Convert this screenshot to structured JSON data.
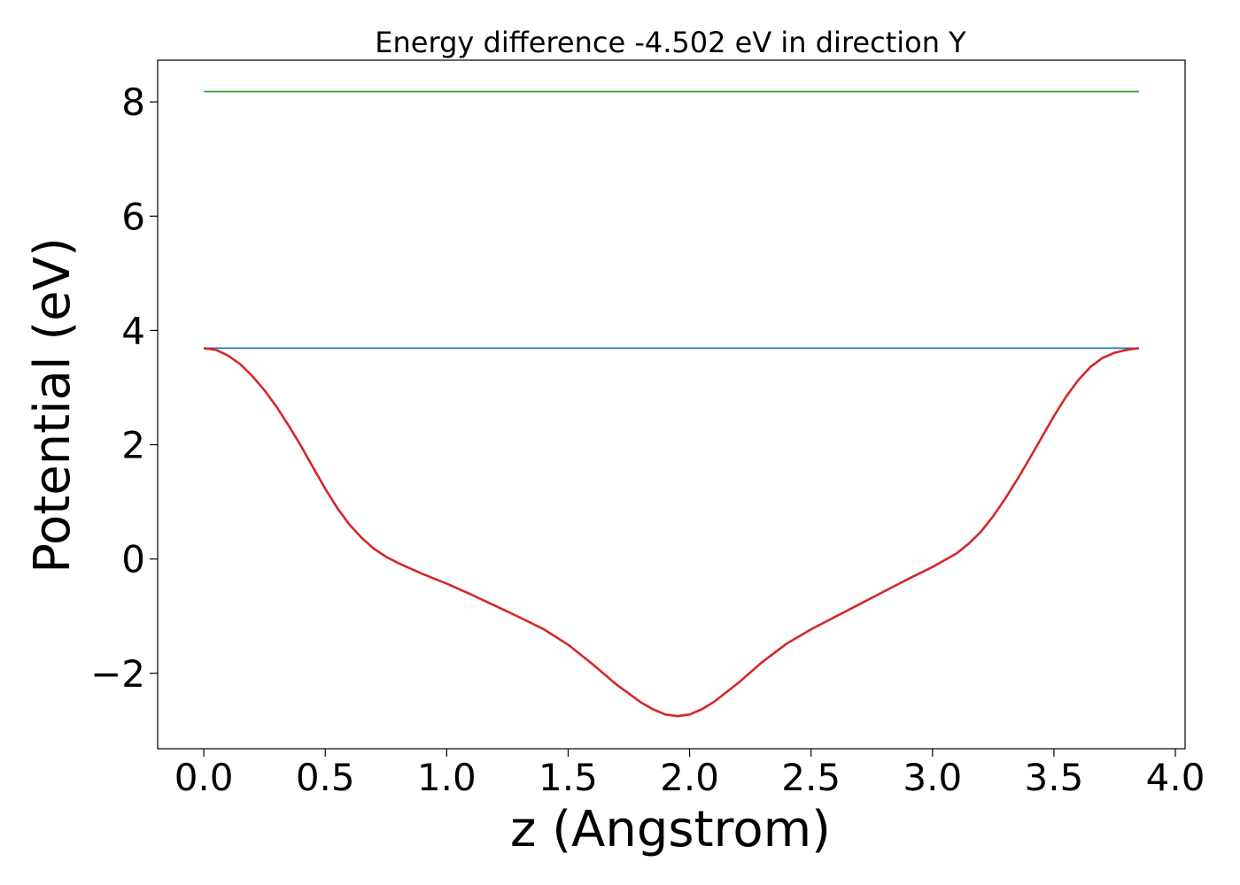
{
  "chart_data": {
    "type": "line",
    "title": "Energy difference -4.502 eV in direction Y",
    "xlabel": "z (Angstrom)",
    "ylabel": "Potential (eV)",
    "xlim": [
      -0.19,
      4.04
    ],
    "ylim": [
      -3.32,
      8.73
    ],
    "x_ticks": [
      "0.0",
      "0.5",
      "1.0",
      "1.5",
      "2.0",
      "2.5",
      "3.0",
      "3.5",
      "4.0"
    ],
    "x_tick_values": [
      0.0,
      0.5,
      1.0,
      1.5,
      2.0,
      2.5,
      3.0,
      3.5,
      4.0
    ],
    "y_ticks": [
      "−2",
      "0",
      "2",
      "4",
      "6",
      "8"
    ],
    "y_tick_values": [
      -2,
      0,
      2,
      4,
      6,
      8
    ],
    "grid": false,
    "series": [
      {
        "color": "#2ca02c",
        "x": [
          0.0,
          3.85
        ],
        "y": [
          8.18,
          8.18
        ]
      },
      {
        "color": "#1f77b4",
        "x": [
          0.0,
          3.85
        ],
        "y": [
          3.69,
          3.69
        ]
      },
      {
        "color": "#d62728",
        "x": [
          0.0,
          0.05,
          0.1,
          0.15,
          0.2,
          0.25,
          0.3,
          0.35,
          0.4,
          0.45,
          0.5,
          0.55,
          0.6,
          0.65,
          0.7,
          0.75,
          0.8,
          0.9,
          1.0,
          1.1,
          1.2,
          1.3,
          1.4,
          1.5,
          1.6,
          1.7,
          1.8,
          1.85,
          1.9,
          1.95,
          2.0,
          2.05,
          2.1,
          2.2,
          2.3,
          2.4,
          2.5,
          2.6,
          2.7,
          2.8,
          2.9,
          3.0,
          3.1,
          3.15,
          3.2,
          3.25,
          3.3,
          3.35,
          3.4,
          3.45,
          3.5,
          3.55,
          3.6,
          3.65,
          3.7,
          3.75,
          3.8,
          3.85
        ],
        "y": [
          3.69,
          3.66,
          3.56,
          3.41,
          3.2,
          2.95,
          2.66,
          2.33,
          1.98,
          1.6,
          1.23,
          0.89,
          0.6,
          0.37,
          0.18,
          0.04,
          -0.07,
          -0.26,
          -0.43,
          -0.62,
          -0.82,
          -1.02,
          -1.23,
          -1.5,
          -1.84,
          -2.2,
          -2.51,
          -2.63,
          -2.72,
          -2.75,
          -2.72,
          -2.63,
          -2.5,
          -2.17,
          -1.8,
          -1.48,
          -1.23,
          -1.01,
          -0.79,
          -0.57,
          -0.35,
          -0.14,
          0.1,
          0.27,
          0.48,
          0.75,
          1.06,
          1.4,
          1.76,
          2.13,
          2.5,
          2.84,
          3.13,
          3.36,
          3.52,
          3.61,
          3.66,
          3.69
        ]
      }
    ]
  }
}
